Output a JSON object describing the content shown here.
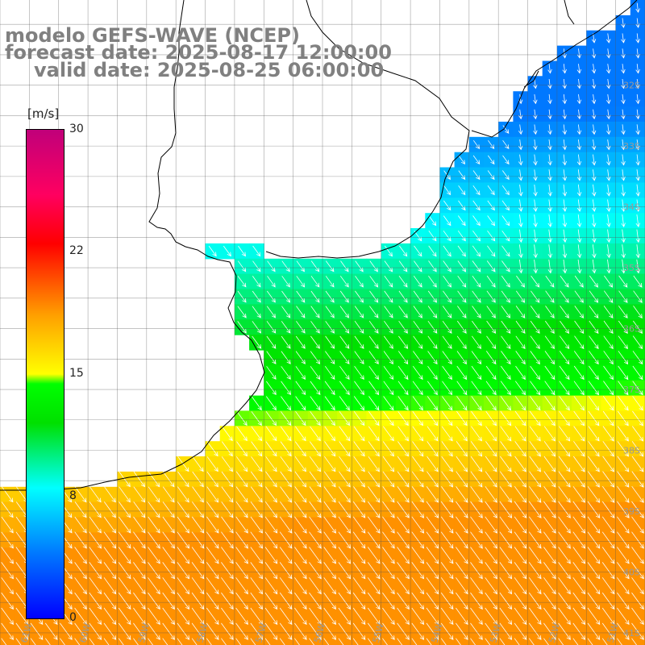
{
  "title": {
    "model": "modelo GEFS-WAVE (NCEP)",
    "forecast": "forecast date: 2025-08-17 12:00:00",
    "valid": "valid date: 2025-08-25 06:00:00"
  },
  "colorbar": {
    "unit": "[m/s]",
    "ticks": [
      "30",
      "22",
      "15",
      "8",
      "0"
    ],
    "tick_values": [
      30,
      22,
      15,
      8,
      0
    ],
    "range": [
      0,
      30
    ],
    "colors": [
      "#0000ff",
      "#0078ff",
      "#00ffff",
      "#00e000",
      "#00ff00",
      "#ffff00",
      "#ffa000",
      "#ff0000",
      "#ff0060",
      "#c0007a"
    ]
  },
  "map": {
    "lat_labels": [
      "32S",
      "33S",
      "34S",
      "35S",
      "36S",
      "37S",
      "38S",
      "39S",
      "40S",
      "41S"
    ],
    "lon_labels": [
      "61W",
      "60W",
      "59W",
      "58W",
      "57W",
      "56W",
      "55W",
      "54W",
      "53W",
      "52W",
      "51W"
    ],
    "lon_range": [
      -61.5,
      -50.5
    ],
    "lat_range": [
      -41.2,
      -30.6
    ],
    "grid_step_deg": 0.5,
    "wind_direction": "from north-west",
    "land_color": "#ffffff",
    "coast_color": "#000000"
  }
}
